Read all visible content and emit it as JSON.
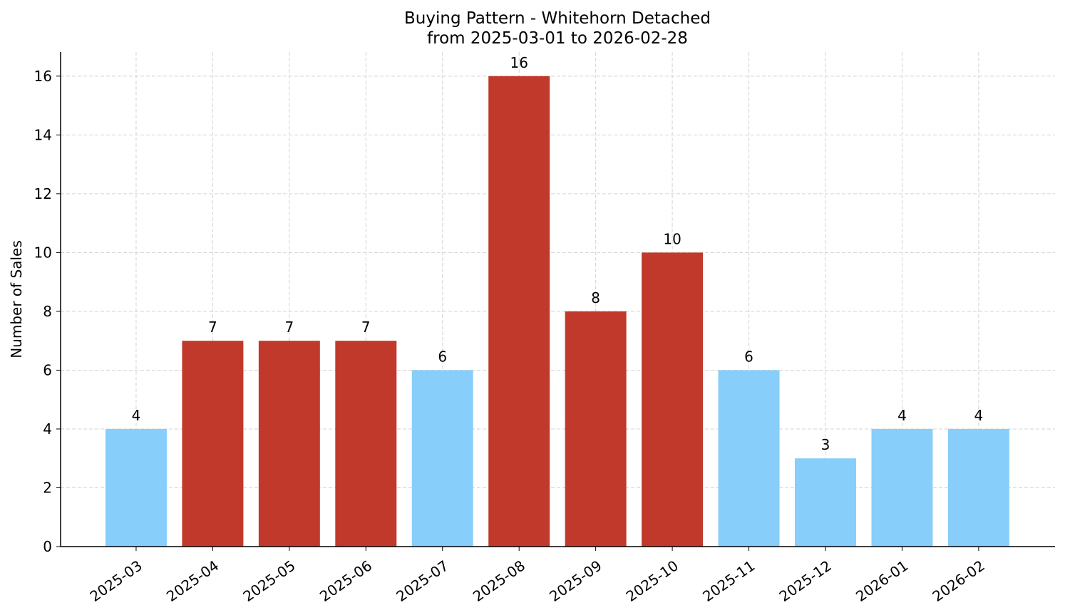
{
  "chart_data": {
    "type": "bar",
    "title": "Buying Pattern - Whitehorn Detached",
    "subtitle": "from 2025-03-01 to 2026-02-28",
    "y_label": "Number of Sales",
    "categories": [
      "2025-03",
      "2025-04",
      "2025-05",
      "2025-06",
      "2025-07",
      "2025-08",
      "2025-09",
      "2025-10",
      "2025-11",
      "2025-12",
      "2026-01",
      "2026-02"
    ],
    "values": [
      4,
      7,
      7,
      7,
      6,
      16,
      8,
      10,
      6,
      3,
      4,
      4
    ],
    "colors": [
      "#87cefa",
      "#c0392b",
      "#c0392b",
      "#c0392b",
      "#87cefa",
      "#c0392b",
      "#c0392b",
      "#c0392b",
      "#87cefa",
      "#87cefa",
      "#87cefa",
      "#87cefa"
    ],
    "ylim": [
      0,
      16.82
    ],
    "yticks": [
      0,
      2,
      4,
      6,
      8,
      10,
      12,
      14,
      16
    ],
    "grid": true
  }
}
